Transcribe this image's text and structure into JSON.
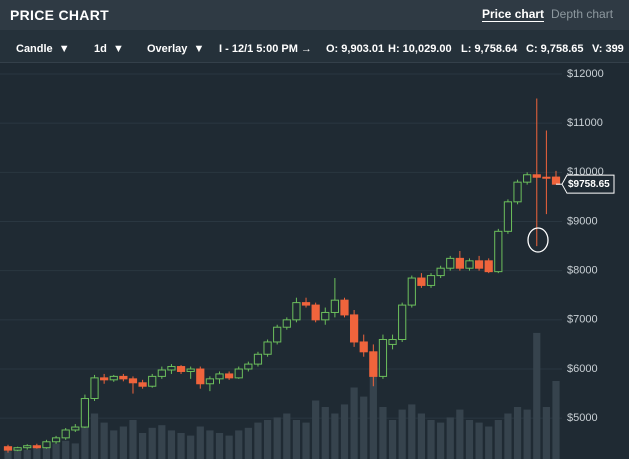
{
  "header": {
    "title": "PRICE CHART",
    "tabs": [
      "Price chart",
      "Depth chart"
    ]
  },
  "toolbar": {
    "chart_style": "Candle",
    "interval": "1d",
    "overlay": "Overlay",
    "info": [
      "I - 12/1 5:00 PM →",
      "O: 9,903.01",
      "H: 10,029.00",
      "L: 9,758.64",
      "C: 9,758.65",
      "V: 399"
    ]
  },
  "chart_data": {
    "type": "candlestick",
    "ylim": [
      4170,
      12223
    ],
    "yticks": [
      {
        "value": 12000,
        "label": "$12000"
      },
      {
        "value": 11000,
        "label": "$11000"
      },
      {
        "value": 10000,
        "label": "$10000"
      },
      {
        "value": 9000,
        "label": "$9000"
      },
      {
        "value": 8000,
        "label": "$8000"
      },
      {
        "value": 7000,
        "label": "$7000"
      },
      {
        "value": 6000,
        "label": "$6000"
      },
      {
        "value": 5000,
        "label": "$5000"
      }
    ],
    "grid": true,
    "up_color": "#6cbf5c",
    "down_color": "#f0643c",
    "volume_color": "#36434d",
    "last_price": {
      "value": 9758.65,
      "label": "$9758.65"
    },
    "ohlc": [
      [
        4420,
        4460,
        4300,
        4350
      ],
      [
        4350,
        4420,
        4330,
        4400
      ],
      [
        4400,
        4470,
        4360,
        4440
      ],
      [
        4440,
        4480,
        4380,
        4400
      ],
      [
        4400,
        4560,
        4380,
        4520
      ],
      [
        4520,
        4640,
        4480,
        4600
      ],
      [
        4600,
        4800,
        4560,
        4760
      ],
      [
        4760,
        4880,
        4720,
        4820
      ],
      [
        4820,
        5480,
        4800,
        5400
      ],
      [
        5400,
        5880,
        5350,
        5820
      ],
      [
        5820,
        5900,
        5700,
        5780
      ],
      [
        5780,
        5880,
        5740,
        5850
      ],
      [
        5850,
        5900,
        5750,
        5800
      ],
      [
        5800,
        5850,
        5500,
        5720
      ],
      [
        5720,
        5780,
        5600,
        5650
      ],
      [
        5650,
        5900,
        5620,
        5850
      ],
      [
        5850,
        6050,
        5800,
        5980
      ],
      [
        5980,
        6100,
        5900,
        6050
      ],
      [
        6050,
        6080,
        5900,
        5950
      ],
      [
        5950,
        6050,
        5800,
        6000
      ],
      [
        6000,
        6050,
        5600,
        5700
      ],
      [
        5700,
        5850,
        5550,
        5800
      ],
      [
        5800,
        5950,
        5700,
        5900
      ],
      [
        5900,
        5950,
        5780,
        5820
      ],
      [
        5820,
        6050,
        5800,
        6000
      ],
      [
        6000,
        6150,
        5950,
        6100
      ],
      [
        6100,
        6350,
        6050,
        6300
      ],
      [
        6300,
        6600,
        6250,
        6550
      ],
      [
        6550,
        6900,
        6500,
        6850
      ],
      [
        6850,
        7050,
        6800,
        7000
      ],
      [
        7000,
        7450,
        6950,
        7350
      ],
      [
        7350,
        7450,
        7250,
        7300
      ],
      [
        7300,
        7350,
        6950,
        7000
      ],
      [
        7000,
        7250,
        6900,
        7150
      ],
      [
        7150,
        7850,
        7050,
        7400
      ],
      [
        7400,
        7450,
        7050,
        7100
      ],
      [
        7100,
        7200,
        6450,
        6550
      ],
      [
        6550,
        6700,
        6250,
        6350
      ],
      [
        6350,
        6500,
        5650,
        5850
      ],
      [
        5850,
        6700,
        5800,
        6600
      ],
      [
        6500,
        6700,
        6400,
        6600
      ],
      [
        6600,
        7350,
        6550,
        7300
      ],
      [
        7300,
        7900,
        7250,
        7850
      ],
      [
        7850,
        7950,
        7650,
        7700
      ],
      [
        7700,
        7950,
        7650,
        7900
      ],
      [
        7900,
        8100,
        7850,
        8050
      ],
      [
        8050,
        8300,
        8000,
        8250
      ],
      [
        8250,
        8400,
        8000,
        8050
      ],
      [
        8050,
        8250,
        8000,
        8200
      ],
      [
        8200,
        8300,
        8000,
        8050
      ],
      [
        8200,
        8250,
        7950,
        7980
      ],
      [
        7980,
        8850,
        7950,
        8800
      ],
      [
        8800,
        9450,
        8750,
        9400
      ],
      [
        9400,
        9850,
        9350,
        9800
      ],
      [
        9800,
        10000,
        9750,
        9950
      ],
      [
        9950,
        11500,
        8500,
        9900
      ],
      [
        9900,
        10850,
        9150,
        9880
      ],
      [
        9903.01,
        10029,
        9758.64,
        9758.65
      ]
    ],
    "volume_lim": [
      0,
      100
    ],
    "volumes": [
      6,
      8,
      7,
      9,
      10,
      12,
      14,
      12,
      30,
      35,
      28,
      22,
      25,
      30,
      20,
      24,
      26,
      22,
      20,
      18,
      25,
      22,
      20,
      18,
      22,
      24,
      28,
      30,
      32,
      35,
      30,
      28,
      45,
      40,
      35,
      42,
      55,
      48,
      72,
      40,
      30,
      38,
      42,
      35,
      30,
      28,
      32,
      38,
      30,
      28,
      25,
      30,
      35,
      40,
      38,
      97,
      40,
      60
    ]
  }
}
